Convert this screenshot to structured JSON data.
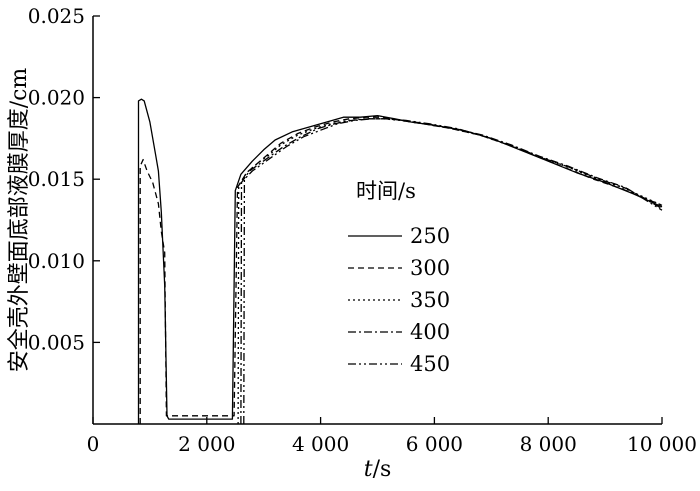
{
  "chart_data": {
    "type": "line",
    "xlabel_italic": "t",
    "xlabel_unit": "/s",
    "ylabel": "安全壳外壁面底部液膜厚度/cm",
    "xlim": [
      0,
      10000
    ],
    "ylim": [
      0,
      0.025
    ],
    "x_ticks": [
      0,
      2000,
      4000,
      6000,
      8000,
      10000
    ],
    "x_tick_labels": [
      "0",
      "2 000",
      "4 000",
      "6 000",
      "8 000",
      "10 000"
    ],
    "y_ticks": [
      0.005,
      0.01,
      0.015,
      0.02,
      0.025
    ],
    "y_tick_labels": [
      "0.005",
      "0.010",
      "0.015",
      "0.020",
      "0.025"
    ],
    "grid": false,
    "legend_title": "时间/s",
    "legend_position": "center",
    "series": [
      {
        "name": "250",
        "dash": "solid",
        "points": [
          [
            800,
            0
          ],
          [
            800,
            0.0198
          ],
          [
            850,
            0.0199
          ],
          [
            900,
            0.0198
          ],
          [
            1000,
            0.0185
          ],
          [
            1100,
            0.0165
          ],
          [
            1150,
            0.0155
          ],
          [
            1200,
            0.013
          ],
          [
            1260,
            0.0085
          ],
          [
            1300,
            0.0005
          ],
          [
            1330,
            0.0003
          ],
          [
            2450,
            0.0003
          ],
          [
            2500,
            0.0143
          ],
          [
            2600,
            0.0153
          ],
          [
            2800,
            0.0161
          ],
          [
            3000,
            0.0168
          ],
          [
            3200,
            0.0174
          ],
          [
            3500,
            0.0179
          ],
          [
            3800,
            0.0182
          ],
          [
            4100,
            0.0185
          ],
          [
            4400,
            0.0188
          ],
          [
            4700,
            0.0188
          ],
          [
            5000,
            0.0189
          ],
          [
            5300,
            0.0187
          ],
          [
            5600,
            0.0185
          ],
          [
            6000,
            0.0183
          ],
          [
            6500,
            0.018
          ],
          [
            7000,
            0.0175
          ],
          [
            7500,
            0.0168
          ],
          [
            8000,
            0.0161
          ],
          [
            8500,
            0.0154
          ],
          [
            9000,
            0.0148
          ],
          [
            9500,
            0.0141
          ],
          [
            10000,
            0.0133
          ]
        ]
      },
      {
        "name": "300",
        "dash": "6 4",
        "points": [
          [
            830,
            0
          ],
          [
            830,
            0.0158
          ],
          [
            880,
            0.0162
          ],
          [
            950,
            0.0155
          ],
          [
            1050,
            0.0148
          ],
          [
            1150,
            0.0135
          ],
          [
            1200,
            0.0118
          ],
          [
            1260,
            0.0105
          ],
          [
            1290,
            0.0005
          ],
          [
            2480,
            0.0005
          ],
          [
            2540,
            0.0145
          ],
          [
            2700,
            0.0154
          ],
          [
            2900,
            0.016
          ],
          [
            3100,
            0.0166
          ],
          [
            3300,
            0.0172
          ],
          [
            3600,
            0.0178
          ],
          [
            3900,
            0.0182
          ],
          [
            4200,
            0.0185
          ],
          [
            4500,
            0.0187
          ],
          [
            4800,
            0.0188
          ],
          [
            5100,
            0.0188
          ],
          [
            5400,
            0.0186
          ],
          [
            5800,
            0.0184
          ],
          [
            6300,
            0.0181
          ],
          [
            6800,
            0.0177
          ],
          [
            7300,
            0.0171
          ],
          [
            7800,
            0.0164
          ],
          [
            8300,
            0.0157
          ],
          [
            8800,
            0.015
          ],
          [
            9300,
            0.0144
          ],
          [
            10000,
            0.0134
          ]
        ]
      },
      {
        "name": "350",
        "dash": "2 3",
        "points": [
          [
            2550,
            0
          ],
          [
            2560,
            0.0146
          ],
          [
            2700,
            0.0154
          ],
          [
            2900,
            0.016
          ],
          [
            3100,
            0.0165
          ],
          [
            3300,
            0.0171
          ],
          [
            3600,
            0.0177
          ],
          [
            3900,
            0.0181
          ],
          [
            4200,
            0.0184
          ],
          [
            4500,
            0.0186
          ],
          [
            4800,
            0.0187
          ],
          [
            5100,
            0.0187
          ],
          [
            5400,
            0.0186
          ],
          [
            5800,
            0.0184
          ],
          [
            6300,
            0.0181
          ],
          [
            6800,
            0.0177
          ],
          [
            7300,
            0.0171
          ],
          [
            7800,
            0.0164
          ],
          [
            8300,
            0.0158
          ],
          [
            8800,
            0.0151
          ],
          [
            9300,
            0.0145
          ],
          [
            10000,
            0.0134
          ]
        ]
      },
      {
        "name": "400",
        "dash": "8 3 2 3",
        "points": [
          [
            2600,
            0
          ],
          [
            2610,
            0.0148
          ],
          [
            2750,
            0.0155
          ],
          [
            2950,
            0.016
          ],
          [
            3150,
            0.0165
          ],
          [
            3350,
            0.017
          ],
          [
            3650,
            0.0176
          ],
          [
            3950,
            0.0181
          ],
          [
            4250,
            0.0184
          ],
          [
            4550,
            0.0186
          ],
          [
            4850,
            0.0187
          ],
          [
            5150,
            0.0187
          ],
          [
            5450,
            0.0186
          ],
          [
            5850,
            0.0184
          ],
          [
            6350,
            0.0181
          ],
          [
            6850,
            0.0177
          ],
          [
            7350,
            0.0171
          ],
          [
            7850,
            0.0164
          ],
          [
            8350,
            0.0158
          ],
          [
            8850,
            0.0151
          ],
          [
            9350,
            0.0145
          ],
          [
            10000,
            0.0132
          ]
        ]
      },
      {
        "name": "450",
        "dash": "8 3 2 3 2 3",
        "points": [
          [
            2650,
            0
          ],
          [
            2660,
            0.015
          ],
          [
            2800,
            0.0155
          ],
          [
            3000,
            0.016
          ],
          [
            3200,
            0.0165
          ],
          [
            3400,
            0.017
          ],
          [
            3700,
            0.0176
          ],
          [
            4000,
            0.018
          ],
          [
            4300,
            0.0184
          ],
          [
            4600,
            0.0186
          ],
          [
            4900,
            0.0187
          ],
          [
            5200,
            0.0187
          ],
          [
            5500,
            0.0186
          ],
          [
            5900,
            0.0184
          ],
          [
            6400,
            0.0181
          ],
          [
            6900,
            0.0176
          ],
          [
            7400,
            0.017
          ],
          [
            7900,
            0.0163
          ],
          [
            8400,
            0.0157
          ],
          [
            8900,
            0.015
          ],
          [
            9400,
            0.0144
          ],
          [
            10000,
            0.0131
          ]
        ]
      }
    ]
  }
}
